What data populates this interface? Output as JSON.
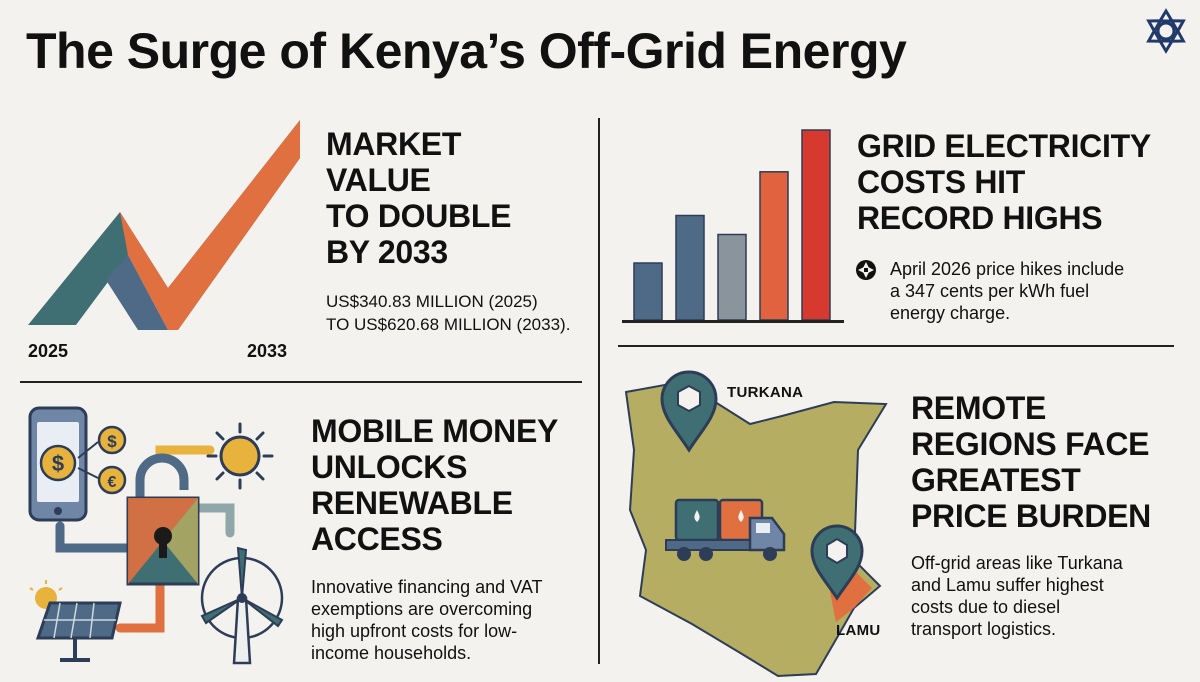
{
  "title": "The Surge of Kenya’s Off-Grid Energy",
  "market": {
    "heading_lines": [
      "MARKET",
      "VALUE",
      "TO DOUBLE",
      "BY 2033"
    ],
    "value_lines": [
      "US$340.83 MILLION (2025)",
      "TO US$620.68 MILLION (2033)."
    ],
    "year_start": "2025",
    "year_end": "2033"
  },
  "grid": {
    "heading_lines": [
      "GRID ELECTRICITY",
      "COSTS HIT",
      "RECORD HIGHS"
    ],
    "note_lines": [
      "April 2026 price hikes include",
      "a 347 cents per kWh fuel",
      "energy charge."
    ],
    "bars": [
      {
        "value": 0.3,
        "color": "#4e6a86"
      },
      {
        "value": 0.55,
        "color": "#4e6a86"
      },
      {
        "value": 0.45,
        "color": "#8a949c"
      },
      {
        "value": 0.78,
        "color": "#e0623f"
      },
      {
        "value": 1.0,
        "color": "#d63a2f"
      }
    ]
  },
  "mobile": {
    "heading_lines": [
      "MOBILE MONEY",
      "UNLOCKS",
      "RENEWABLE",
      "ACCESS"
    ],
    "body_lines": [
      "Innovative financing and VAT",
      "exemptions are overcoming",
      "high upfront costs for low-",
      "income households."
    ],
    "icons": [
      "phone-icon",
      "dollar-coin-icon",
      "euro-coin-icon",
      "padlock-icon",
      "sun-icon",
      "solar-panel-icon",
      "wind-turbine-icon"
    ]
  },
  "remote": {
    "heading_lines": [
      "REMOTE",
      "REGIONS FACE",
      "GREATEST",
      "PRICE BURDEN"
    ],
    "body_lines": [
      "Off-grid areas like Turkana",
      "and Lamu suffer highest",
      "costs due to diesel",
      "transport logistics."
    ],
    "map_labels": {
      "north": "TURKANA",
      "coast": "LAMU"
    }
  },
  "colors": {
    "teal": "#3f6f73",
    "orange": "#e0703f",
    "slate": "#4e6a86",
    "red": "#d63a2f",
    "olive": "#b5ad62",
    "gold": "#e8b33c",
    "navy": "#223a6b"
  }
}
